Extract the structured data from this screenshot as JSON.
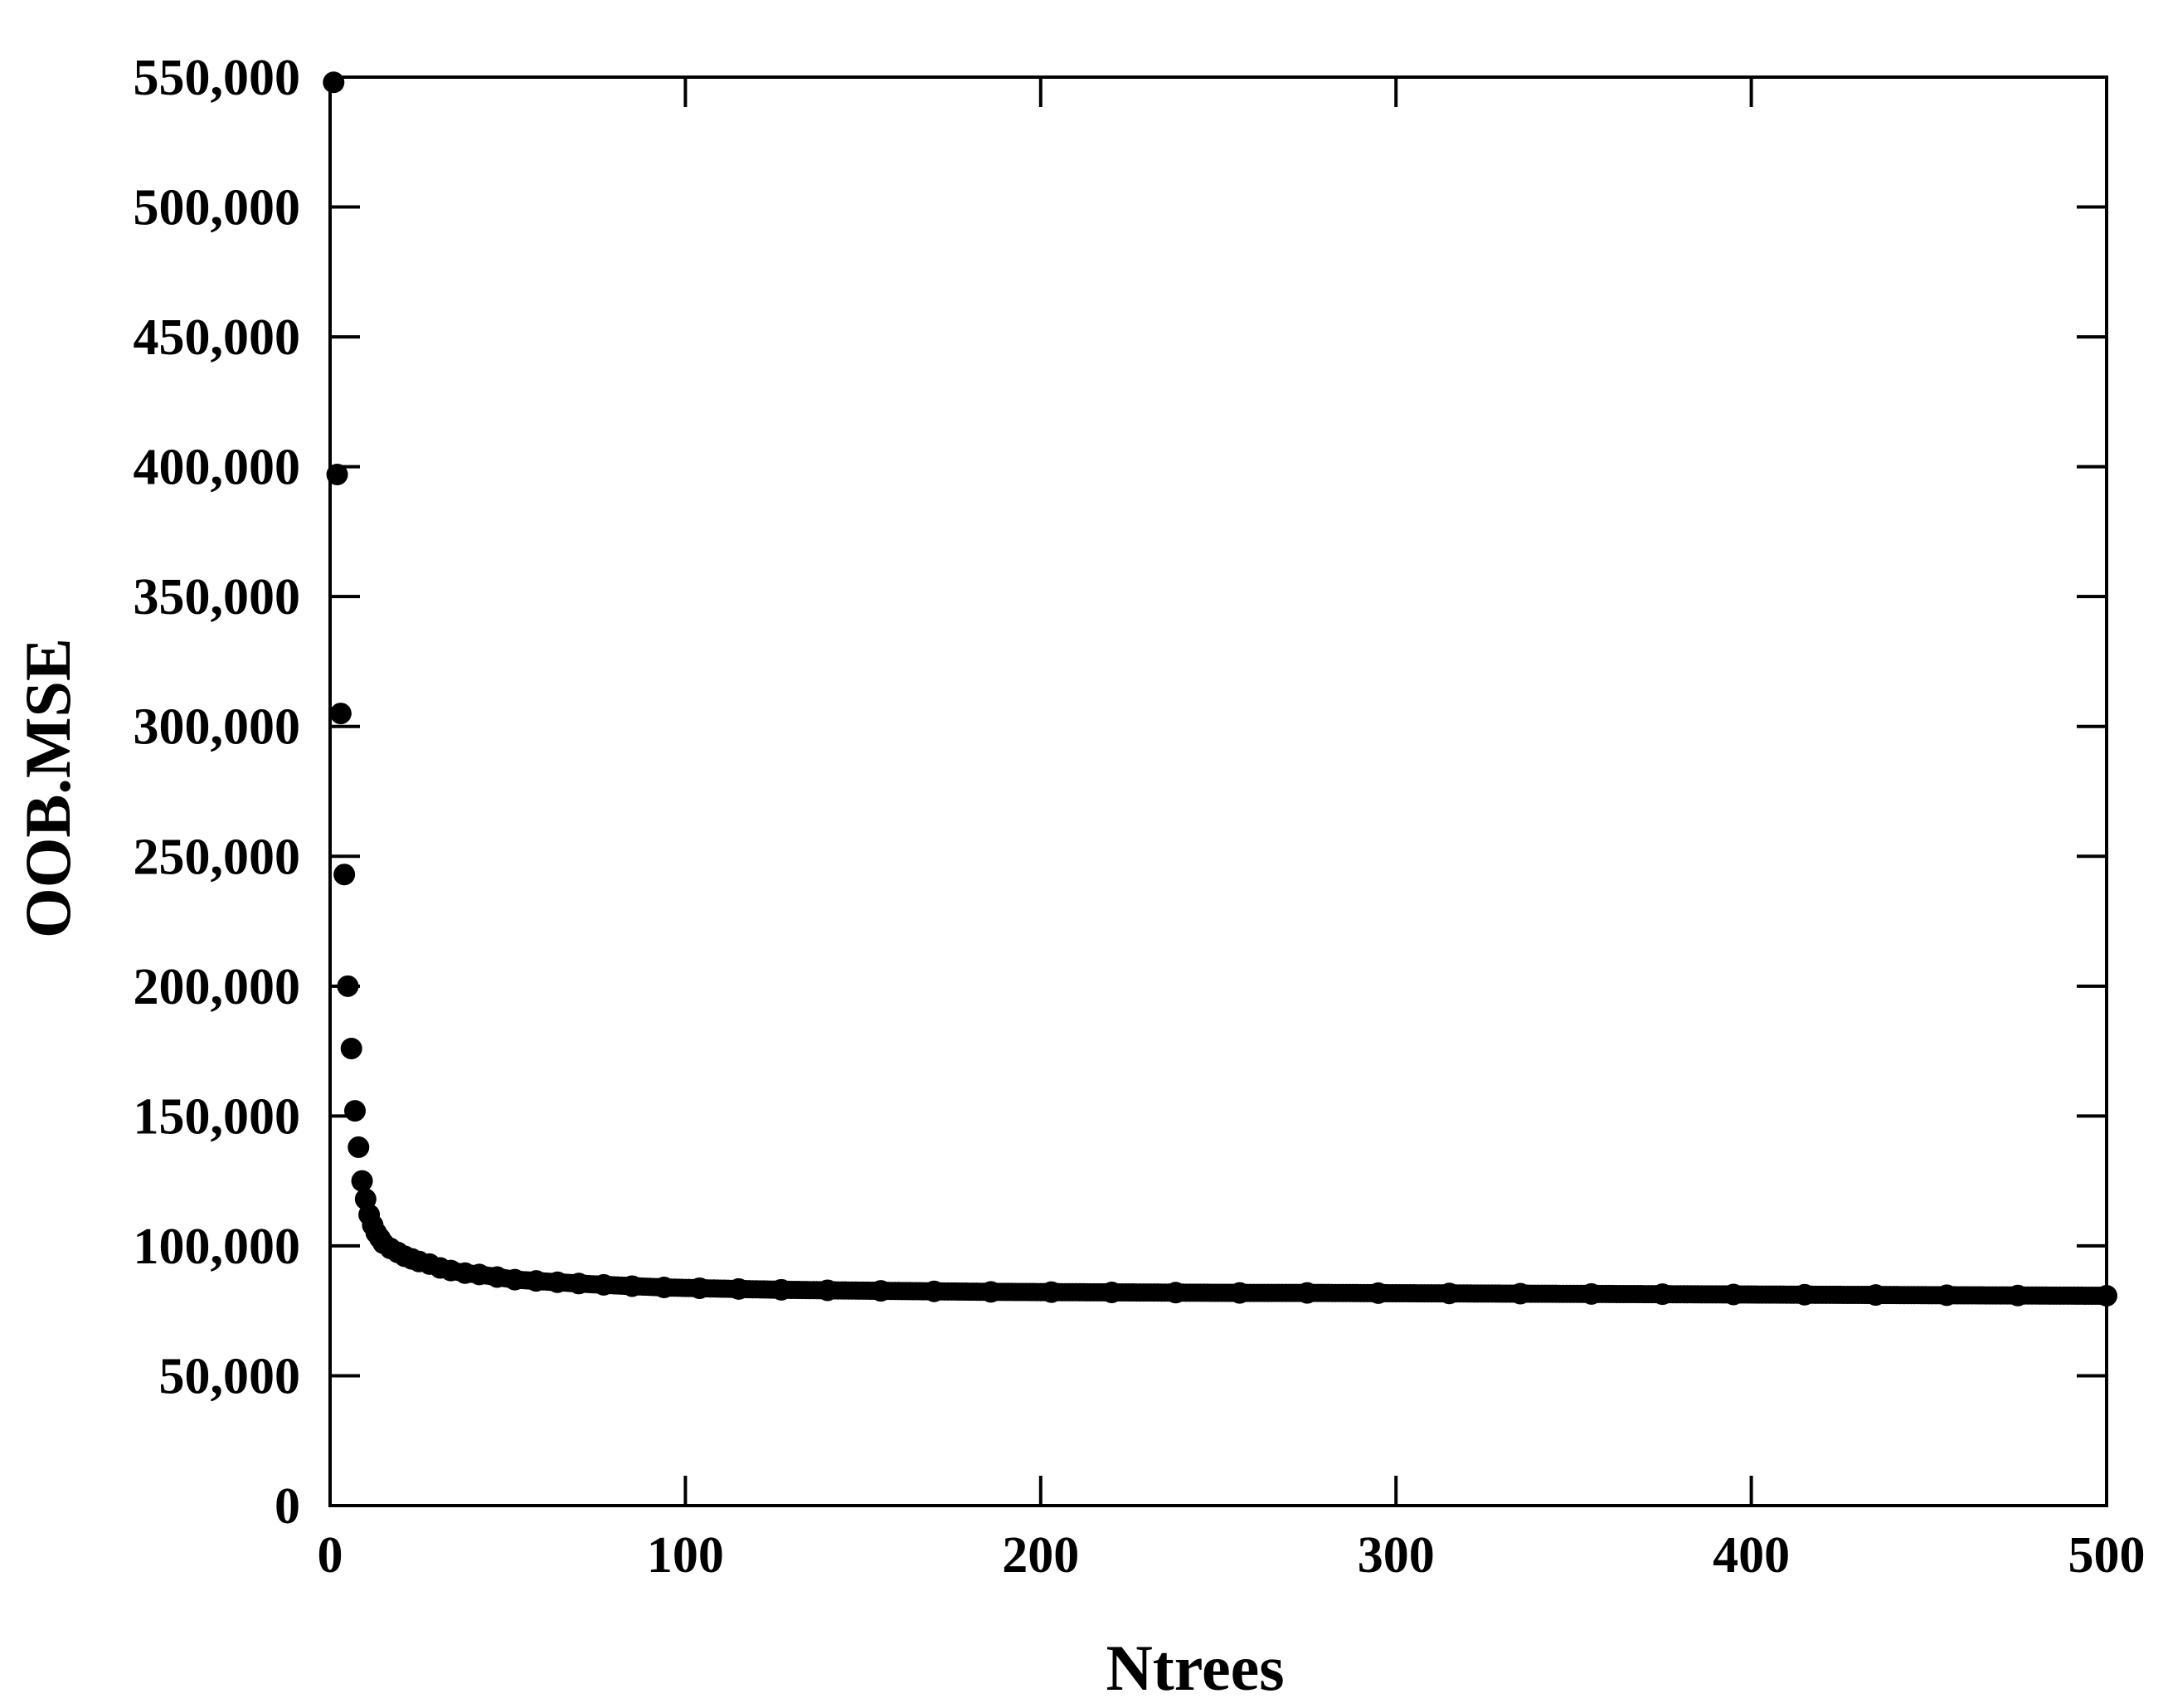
{
  "chart_data": {
    "type": "scatter",
    "title": "",
    "xlabel": "Ntrees",
    "ylabel": "OOB.MSE",
    "xlim": [
      0,
      500
    ],
    "ylim": [
      0,
      550000
    ],
    "grid": false,
    "legend": "none",
    "marker_color": "#000000",
    "x_ticks": [
      {
        "value": 0,
        "label": "0"
      },
      {
        "value": 100,
        "label": "100"
      },
      {
        "value": 200,
        "label": "200"
      },
      {
        "value": 300,
        "label": "300"
      },
      {
        "value": 400,
        "label": "400"
      },
      {
        "value": 500,
        "label": "500"
      }
    ],
    "y_ticks": [
      {
        "value": 0,
        "label": "0"
      },
      {
        "value": 50000,
        "label": "50,000"
      },
      {
        "value": 100000,
        "label": "100,000"
      },
      {
        "value": 150000,
        "label": "150,000"
      },
      {
        "value": 200000,
        "label": "200,000"
      },
      {
        "value": 250000,
        "label": "250,000"
      },
      {
        "value": 300000,
        "label": "300,000"
      },
      {
        "value": 350000,
        "label": "350,000"
      },
      {
        "value": 400000,
        "label": "400,000"
      },
      {
        "value": 450000,
        "label": "450,000"
      },
      {
        "value": 500000,
        "label": "500,000"
      },
      {
        "value": 550000,
        "label": "550,000"
      }
    ],
    "series": [
      {
        "points": [
          [
            1,
            548000
          ],
          [
            2,
            397000
          ],
          [
            3,
            305000
          ],
          [
            4,
            243000
          ],
          [
            5,
            200000
          ],
          [
            6,
            176000
          ],
          [
            7,
            152000
          ],
          [
            8,
            138000
          ],
          [
            9,
            125000
          ],
          [
            10,
            118000
          ],
          [
            11,
            112000
          ],
          [
            12,
            108000
          ],
          [
            13,
            105000
          ],
          [
            14,
            103000
          ],
          [
            15,
            101000
          ],
          [
            17,
            99000
          ],
          [
            19,
            97500
          ],
          [
            21,
            96000
          ],
          [
            23,
            95000
          ],
          [
            25,
            94000
          ],
          [
            28,
            93000
          ],
          [
            31,
            91500
          ],
          [
            34,
            90500
          ],
          [
            38,
            89500
          ],
          [
            42,
            89000
          ],
          [
            47,
            88000
          ],
          [
            52,
            87000
          ],
          [
            58,
            86500
          ],
          [
            64,
            86000
          ],
          [
            70,
            85500
          ],
          [
            77,
            85000
          ],
          [
            85,
            84500
          ],
          [
            94,
            84000
          ],
          [
            104,
            83700
          ],
          [
            115,
            83400
          ],
          [
            127,
            83100
          ],
          [
            140,
            82900
          ],
          [
            155,
            82700
          ],
          [
            170,
            82500
          ],
          [
            186,
            82300
          ],
          [
            203,
            82200
          ],
          [
            220,
            82100
          ],
          [
            238,
            82000
          ],
          [
            256,
            81900
          ],
          [
            275,
            81900
          ],
          [
            295,
            81800
          ],
          [
            315,
            81700
          ],
          [
            335,
            81600
          ],
          [
            355,
            81500
          ],
          [
            375,
            81400
          ],
          [
            395,
            81300
          ],
          [
            415,
            81200
          ],
          [
            435,
            81100
          ],
          [
            455,
            81000
          ],
          [
            475,
            80900
          ],
          [
            500,
            80800
          ]
        ]
      }
    ]
  }
}
